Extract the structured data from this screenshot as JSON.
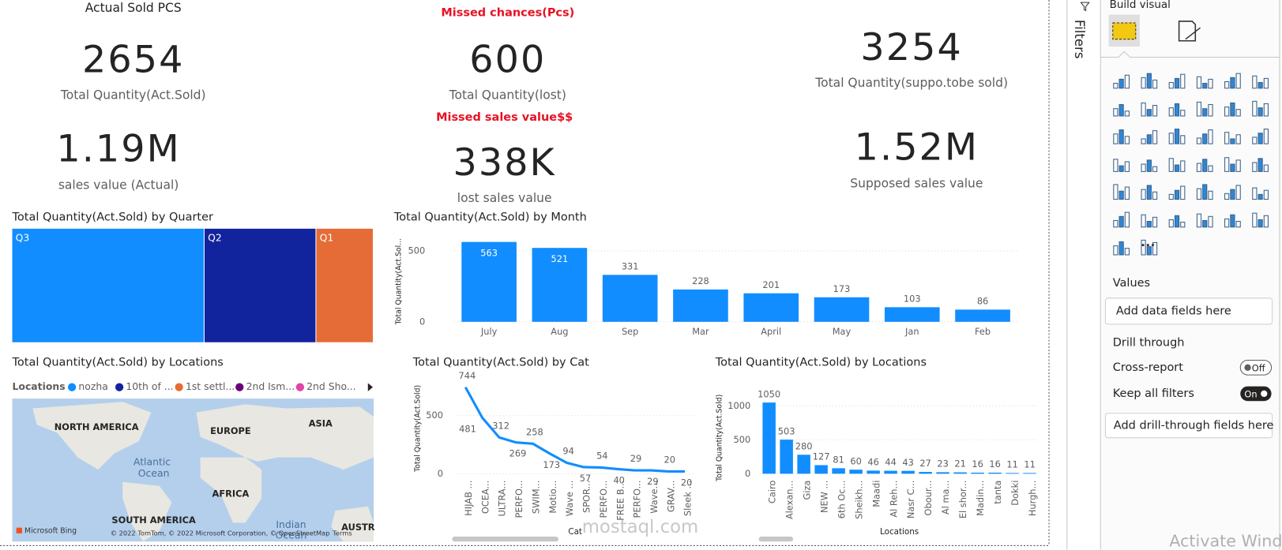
{
  "cards": [
    {
      "title": "Actual Sold PCS",
      "value": "2654",
      "label": "Total Quantity(Act.Sold)"
    },
    {
      "value": "1.19M",
      "label": "sales value (Actual)"
    },
    {
      "title": "Missed chances(Pcs)",
      "value": "600",
      "label": "Total Quantity(lost)"
    },
    {
      "title": "Missed sales value$$",
      "value": "338K",
      "label": "lost sales value"
    },
    {
      "value": "3254",
      "label": "Total Quantity(suppo.tobe sold)"
    },
    {
      "value": "1.52M",
      "label": "Supposed sales value"
    }
  ],
  "chart_data": [
    {
      "type": "treemap",
      "title": "Total Quantity(Act.Sold) by Quarter",
      "categories": [
        "Q3",
        "Q2",
        "Q1"
      ],
      "values": [
        1412,
        821,
        421
      ],
      "colors": [
        "#118dff",
        "#12239e",
        "#e66c37"
      ]
    },
    {
      "type": "bar",
      "title": "Total Quantity(Act.Sold) by Month",
      "y_label": "Total Quantity(Act.Sol...",
      "categories": [
        "July",
        "Aug",
        "Sep",
        "Mar",
        "April",
        "May",
        "Jan",
        "Feb"
      ],
      "values": [
        563,
        521,
        331,
        228,
        201,
        173,
        103,
        86
      ],
      "color": "#118dff",
      "ylim": [
        0,
        570
      ],
      "yticks": [
        0,
        500
      ],
      "grid": true
    },
    {
      "type": "line",
      "title": "Total Quantity(Act.Sold) by Cat",
      "x_label": "Cat",
      "y_label": "Total Quantity(Act.Sold)",
      "categories": [
        "HIJAB ...",
        "OCEA...",
        "ULTRA...",
        "PERFO...",
        "SWIM...",
        "Motio...",
        "Wave ...",
        "SPOR...",
        "PERFO...",
        "FREE B...",
        "PERFO...",
        "Wave...",
        "GRAV...",
        "Sleek ..."
      ],
      "values": [
        744,
        481,
        312,
        269,
        258,
        173,
        94,
        57,
        54,
        40,
        29,
        29,
        20,
        20
      ],
      "color": "#118dff",
      "ylim": [
        0,
        780
      ],
      "yticks": [
        0,
        500
      ],
      "grid": true
    },
    {
      "type": "bar",
      "title": "Total Quantity(Act.Sold) by Locations",
      "x_label": "Locations",
      "y_label": "Total Quantity(Act.Sold)",
      "categories": [
        "Cairo",
        "Alexan...",
        "Giza",
        "NEW ...",
        "6th Oc...",
        "Sheikh...",
        "Maadi",
        "Al Reh...",
        "Nasr C...",
        "Obour...",
        "Al ma...",
        "El shor...",
        "Madin...",
        "tanta",
        "Dokki",
        "Hurgh..."
      ],
      "values": [
        1050,
        503,
        280,
        127,
        81,
        60,
        46,
        44,
        43,
        27,
        23,
        21,
        16,
        16,
        11,
        11
      ],
      "color": "#118dff",
      "ylim": [
        0,
        1060
      ],
      "yticks": [
        0,
        500,
        1000
      ],
      "grid": true
    }
  ],
  "map": {
    "title": "Total Quantity(Act.Sold) by Locations",
    "legend_title": "Locations",
    "legend": [
      {
        "name": "nozha",
        "color": "#118dff"
      },
      {
        "name": "10th of ...",
        "color": "#12239e"
      },
      {
        "name": "1st settl...",
        "color": "#e66c37"
      },
      {
        "name": "2nd Ism...",
        "color": "#6b007b"
      },
      {
        "name": "2nd Sho...",
        "color": "#e044a7"
      }
    ],
    "labels": [
      "NORTH AMERICA",
      "EUROPE",
      "ASIA",
      "Atlantic",
      "Ocean",
      "AFRICA",
      "SOUTH AMERICA",
      "Indian",
      "Ocean",
      "AUSTR"
    ],
    "credits": [
      "Microsoft Bing",
      "© 2022 TomTom, © 2022 Microsoft Corporation, © OpenStreetMap",
      "Terms"
    ]
  },
  "panel": {
    "filters": "Filters",
    "build": "Build visual",
    "values": "Values",
    "values_hint": "Add data fields here",
    "drill": "Drill through",
    "cross": "Cross-report",
    "cross_state": "Off",
    "keep": "Keep all filters",
    "keep_state": "On",
    "drill_hint": "Add drill-through fields here"
  },
  "watermarks": [
    "mostaql.com",
    "Activate Wind"
  ]
}
